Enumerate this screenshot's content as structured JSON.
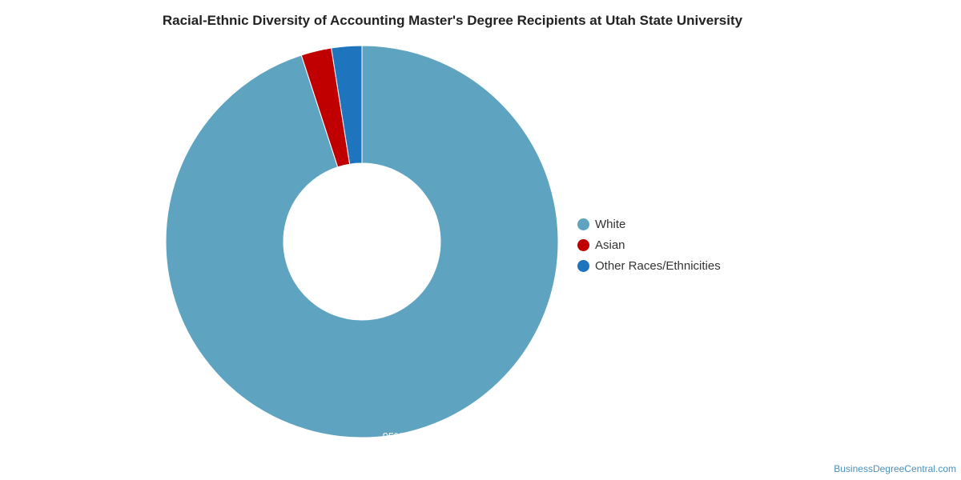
{
  "chart_data": {
    "type": "pie",
    "variant": "donut",
    "title": "Racial-Ethnic Diversity of Accounting Master's Degree Recipients at Utah State University",
    "categories": [
      "White",
      "Asian",
      "Other Races/Ethnicities"
    ],
    "values": [
      95,
      2.5,
      2.5
    ],
    "colors": [
      "#5ea3c0",
      "#c00000",
      "#1f75bd"
    ],
    "data_labels": [
      "95%",
      "",
      ""
    ],
    "legend_position": "right"
  },
  "footer": {
    "source": "BusinessDegreeCentral.com"
  }
}
